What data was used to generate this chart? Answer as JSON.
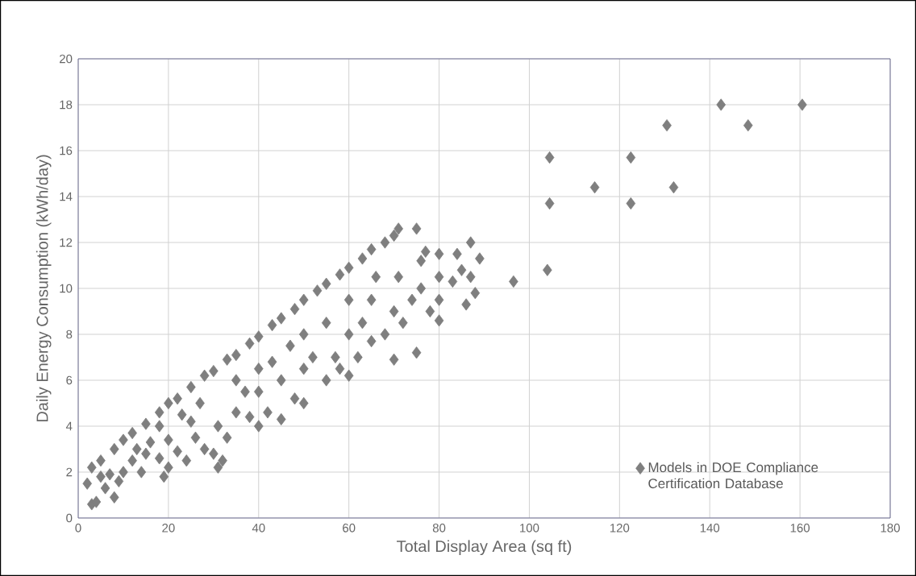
{
  "chart_data": {
    "type": "scatter",
    "xlabel": "Total Display Area (sq ft)",
    "ylabel": "Daily Energy Consumption  (kWh/day)",
    "xlim": [
      0,
      180
    ],
    "ylim": [
      0,
      20
    ],
    "xticks": [
      0,
      20,
      40,
      60,
      80,
      100,
      120,
      140,
      160,
      180
    ],
    "yticks": [
      0,
      2,
      4,
      6,
      8,
      10,
      12,
      14,
      16,
      18,
      20
    ],
    "grid": true,
    "legend": "bottom right",
    "marker": "diamond",
    "series": [
      {
        "name": "Models in DOE Compliance Certification Database",
        "color": "#7f7f7f",
        "x": [
          2,
          3,
          5,
          8,
          10,
          12,
          15,
          18,
          20,
          22,
          25,
          28,
          30,
          33,
          35,
          38,
          40,
          43,
          45,
          48,
          50,
          53,
          55,
          58,
          60,
          63,
          65,
          68,
          70,
          71,
          75,
          3,
          4,
          6,
          8,
          9,
          10,
          12,
          15,
          18,
          18,
          20,
          20,
          22,
          24,
          25,
          28,
          30,
          31,
          31,
          32,
          33,
          35,
          38,
          40,
          40,
          40,
          42,
          45,
          45,
          48,
          50,
          50,
          50,
          52,
          55,
          57,
          58,
          60,
          60,
          60,
          62,
          63,
          65,
          65,
          68,
          70,
          70,
          71,
          72,
          74,
          75,
          76,
          77,
          78,
          80,
          80,
          80,
          80,
          83,
          84,
          86,
          87,
          87,
          88,
          89,
          85,
          76,
          66,
          55,
          47,
          43,
          37,
          35,
          27,
          26,
          23,
          16,
          14,
          13,
          7,
          5,
          19,
          96.5,
          104,
          104.5,
          104.5,
          114.5,
          122.5,
          122.5,
          130.5,
          132,
          142.5,
          148.5,
          160.5
        ],
        "values": [
          1.5,
          2.2,
          2.5,
          3.0,
          3.4,
          3.7,
          4.1,
          4.6,
          5.0,
          5.2,
          5.7,
          6.2,
          6.4,
          6.9,
          7.1,
          7.6,
          7.9,
          8.4,
          8.7,
          9.1,
          9.5,
          9.9,
          10.2,
          10.6,
          10.9,
          11.3,
          11.7,
          12.0,
          12.3,
          12.6,
          12.6,
          0.6,
          0.7,
          1.3,
          0.9,
          1.6,
          2.0,
          2.5,
          2.8,
          2.6,
          4.0,
          2.2,
          3.4,
          2.9,
          2.5,
          4.2,
          3.0,
          2.8,
          2.2,
          4.0,
          2.5,
          3.5,
          4.6,
          4.4,
          4.0,
          5.5,
          6.5,
          4.6,
          4.3,
          6.0,
          5.2,
          5.0,
          6.5,
          8.0,
          7.0,
          6.0,
          7.0,
          6.5,
          6.2,
          8.0,
          9.5,
          7.0,
          8.5,
          7.7,
          9.5,
          8.0,
          6.9,
          9.0,
          10.5,
          8.5,
          9.5,
          7.2,
          10.0,
          11.6,
          9.0,
          8.6,
          9.5,
          10.5,
          11.5,
          10.3,
          11.5,
          9.3,
          12.0,
          10.5,
          9.8,
          11.3,
          10.8,
          11.2,
          10.5,
          8.5,
          7.5,
          6.8,
          5.5,
          6.0,
          5.0,
          3.5,
          4.5,
          3.3,
          2.0,
          3.0,
          1.9,
          1.8,
          1.8,
          10.3,
          10.8,
          13.7,
          15.7,
          14.4,
          13.7,
          15.7,
          17.1,
          14.4,
          18.0,
          17.1,
          18.0
        ]
      }
    ]
  }
}
